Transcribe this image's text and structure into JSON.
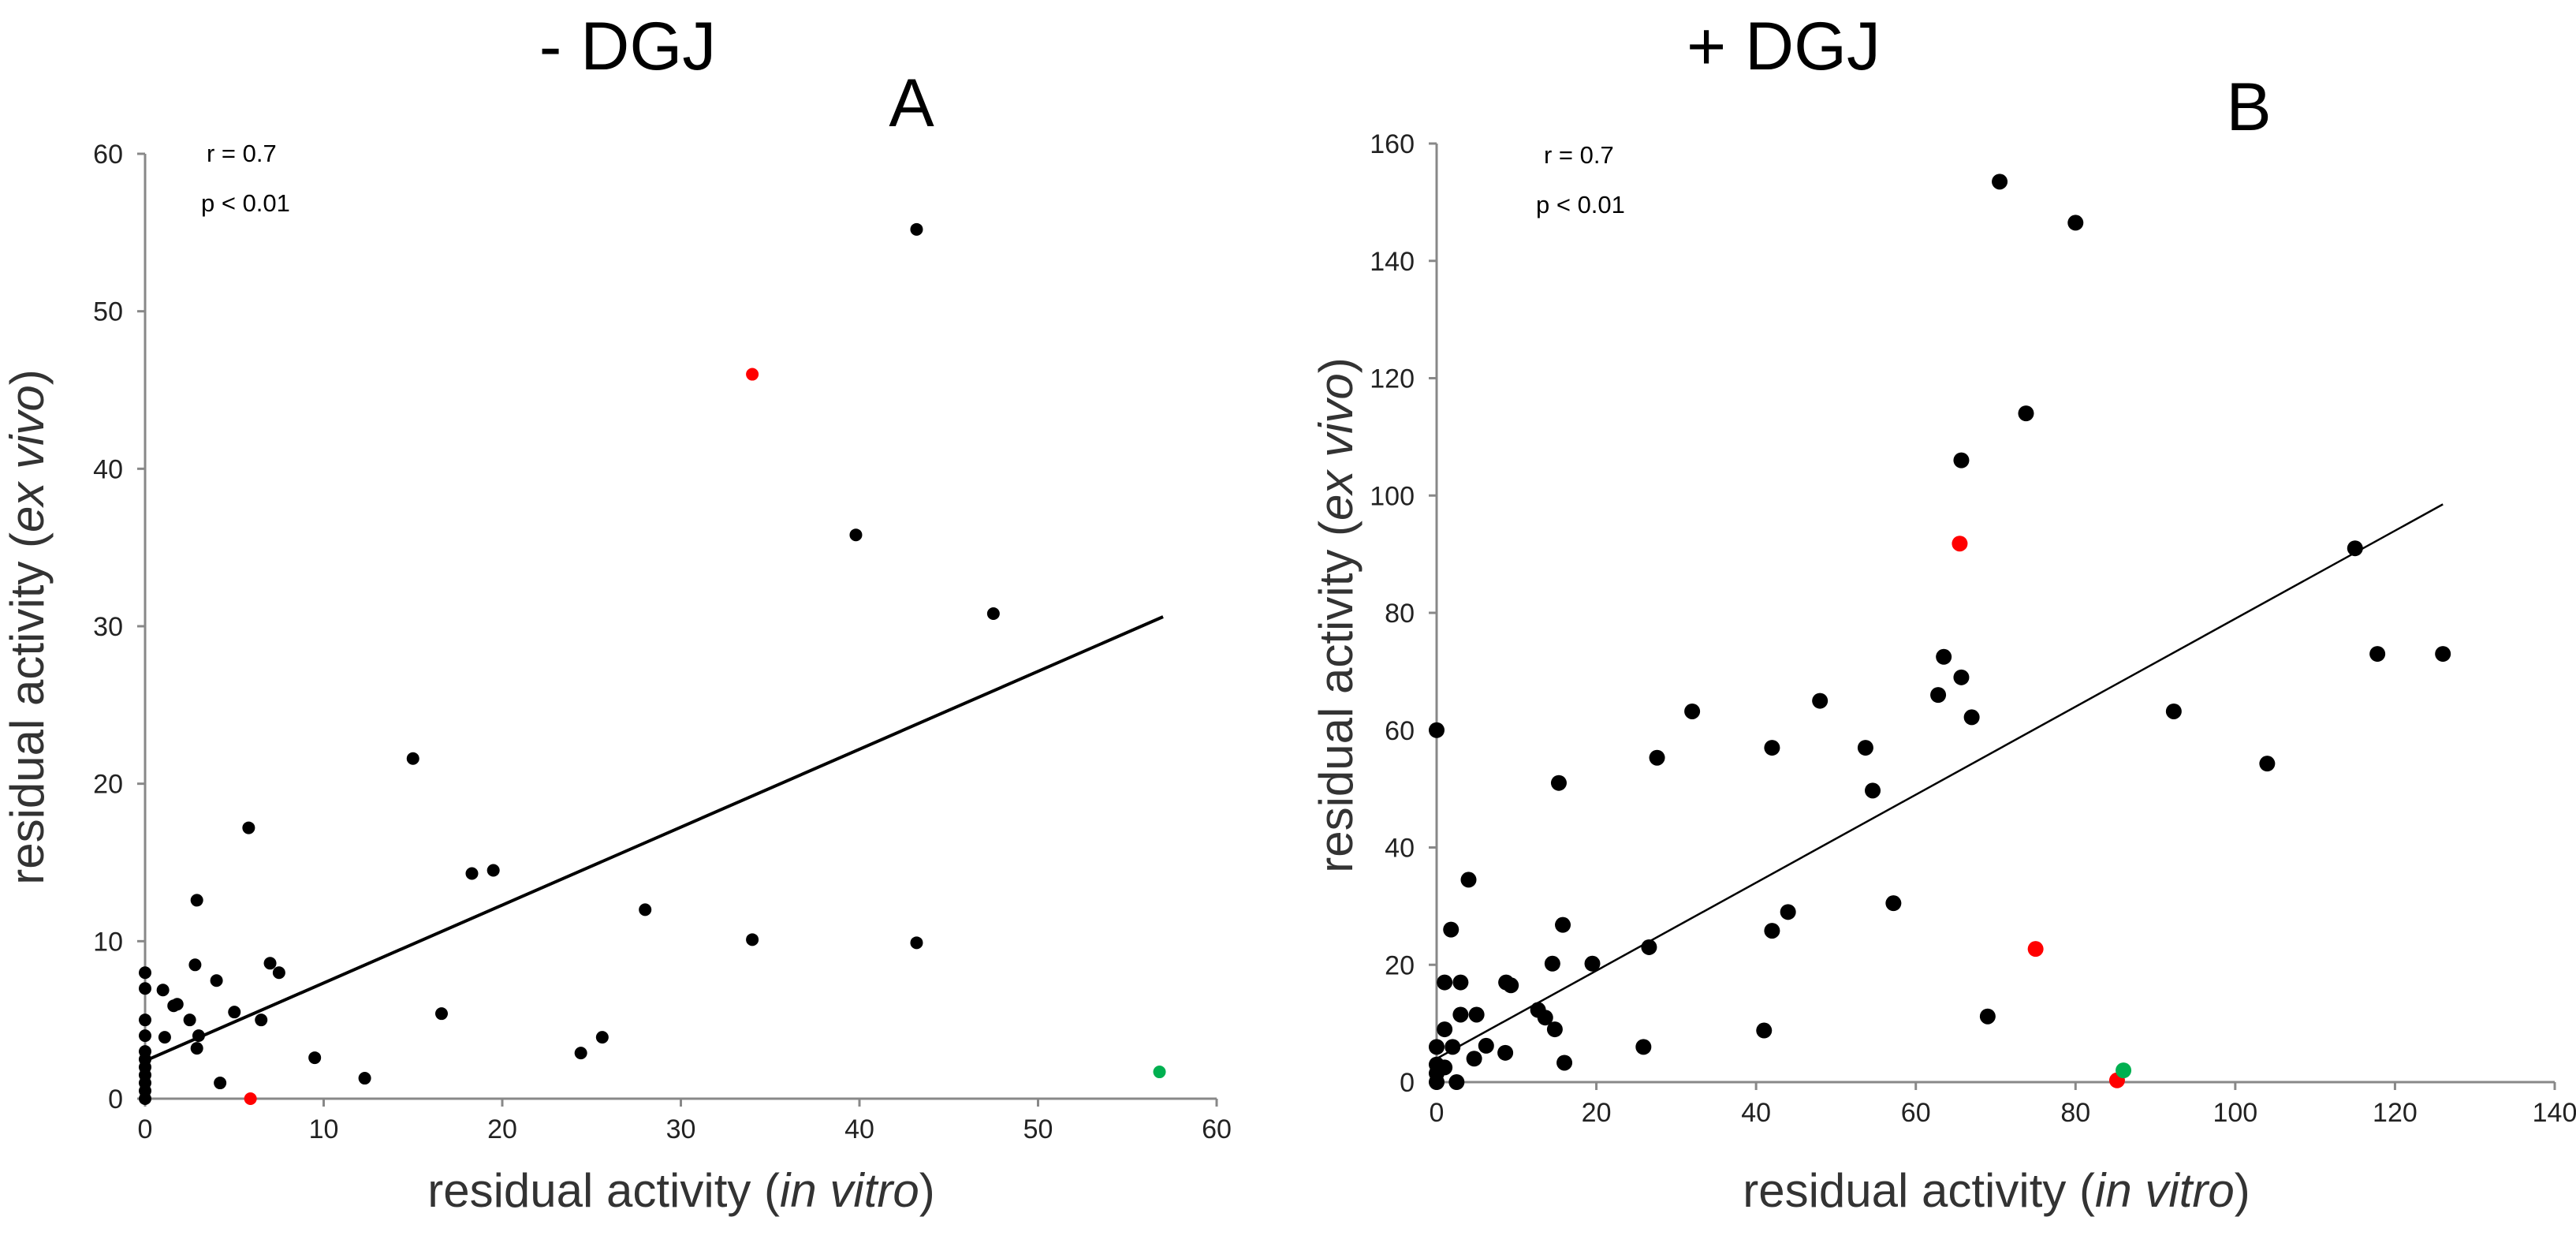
{
  "chart_data": [
    {
      "type": "scatter",
      "title": "- DGJ",
      "panel": "A",
      "xlabel": "residual activity (in vitro)",
      "xlabel_parts": [
        "residual activity (",
        "in vitro",
        ")"
      ],
      "ylabel": "residual activity (ex vivo)",
      "ylabel_parts": [
        "residual activity (",
        "ex vivo",
        ")"
      ],
      "xlim": [
        0,
        60
      ],
      "ylim": [
        0,
        60
      ],
      "xticks": [
        0,
        10,
        20,
        30,
        40,
        50,
        60
      ],
      "yticks": [
        0,
        10,
        20,
        30,
        40,
        50,
        60
      ],
      "annotations": {
        "r": "r = 0.7",
        "p": "p < 0.01"
      },
      "regression": {
        "x": [
          0,
          57
        ],
        "y": [
          2.4,
          30.6
        ]
      },
      "series": [
        {
          "name": "black",
          "color": "#000000",
          "points": [
            [
              43.2,
              55.2
            ],
            [
              39.8,
              35.8
            ],
            [
              47.5,
              30.8
            ],
            [
              15,
              21.6
            ],
            [
              5.8,
              17.2
            ],
            [
              18.3,
              14.3
            ],
            [
              19.5,
              14.5
            ],
            [
              28,
              12
            ],
            [
              34,
              10.1
            ],
            [
              43.2,
              9.9
            ],
            [
              2.9,
              12.6
            ],
            [
              2.8,
              8.5
            ],
            [
              0,
              8
            ],
            [
              0,
              7
            ],
            [
              1,
              6.9
            ],
            [
              1.8,
              6
            ],
            [
              1.6,
              5.9
            ],
            [
              0,
              5
            ],
            [
              2.5,
              5
            ],
            [
              4,
              7.5
            ],
            [
              3,
              4
            ],
            [
              2.9,
              3.2
            ],
            [
              1.1,
              3.9
            ],
            [
              5,
              5.5
            ],
            [
              6.5,
              5
            ],
            [
              7,
              8.6
            ],
            [
              7.5,
              8
            ],
            [
              0,
              4
            ],
            [
              0,
              3
            ],
            [
              0,
              2.5
            ],
            [
              0,
              2
            ],
            [
              0,
              1.5
            ],
            [
              0,
              1
            ],
            [
              0,
              0.5
            ],
            [
              0,
              0
            ],
            [
              4.2,
              1
            ],
            [
              9.5,
              2.6
            ],
            [
              12.3,
              1.3
            ],
            [
              16.6,
              5.4
            ],
            [
              24.4,
              2.9
            ],
            [
              25.6,
              3.9
            ]
          ]
        },
        {
          "name": "red",
          "color": "#ff0000",
          "points": [
            [
              34,
              46
            ],
            [
              5.9,
              0
            ]
          ]
        },
        {
          "name": "green",
          "color": "#00b050",
          "points": [
            [
              56.8,
              1.7
            ]
          ]
        }
      ]
    },
    {
      "type": "scatter",
      "title": "+ DGJ",
      "panel": "B",
      "xlabel": "residual activity (in vitro)",
      "xlabel_parts": [
        "residual activity (",
        "in vitro",
        ")"
      ],
      "ylabel": "residual activity (ex vivo)",
      "ylabel_parts": [
        "residual activity (",
        "ex vivo",
        ")"
      ],
      "xlim": [
        0,
        140
      ],
      "ylim": [
        0,
        160
      ],
      "xticks": [
        0,
        20,
        40,
        60,
        80,
        100,
        120,
        140
      ],
      "yticks": [
        0,
        20,
        40,
        60,
        80,
        100,
        120,
        140,
        160
      ],
      "annotations": {
        "r": "r = 0.7",
        "p": "p < 0.01"
      },
      "regression": {
        "x": [
          0,
          126
        ],
        "y": [
          4,
          98.5
        ]
      },
      "series": [
        {
          "name": "black",
          "color": "#000000",
          "points": [
            [
              70.5,
              153.5
            ],
            [
              80,
              146.5
            ],
            [
              73.8,
              114
            ],
            [
              65.7,
              106
            ],
            [
              115,
              91
            ],
            [
              117.8,
              73
            ],
            [
              126,
              73
            ],
            [
              63.5,
              72.5
            ],
            [
              65.7,
              69
            ],
            [
              62.8,
              66
            ],
            [
              67,
              62.2
            ],
            [
              92.3,
              63.2
            ],
            [
              104,
              54.3
            ],
            [
              48,
              65
            ],
            [
              32,
              63.2
            ],
            [
              27.6,
              55.3
            ],
            [
              42,
              57
            ],
            [
              53.7,
              57
            ],
            [
              54.6,
              49.7
            ],
            [
              15.3,
              51
            ],
            [
              0,
              60
            ],
            [
              57.2,
              30.5
            ],
            [
              4,
              34.5
            ],
            [
              15.8,
              26.8
            ],
            [
              1.8,
              26
            ],
            [
              42,
              25.8
            ],
            [
              44,
              29
            ],
            [
              26.6,
              23
            ],
            [
              14.5,
              20.2
            ],
            [
              19.5,
              20.2
            ],
            [
              8.7,
              17
            ],
            [
              9.3,
              16.5
            ],
            [
              1,
              17
            ],
            [
              3,
              17
            ],
            [
              3,
              11.5
            ],
            [
              5,
              11.5
            ],
            [
              12.7,
              12.3
            ],
            [
              13.6,
              11
            ],
            [
              14.8,
              9
            ],
            [
              1,
              9
            ],
            [
              2,
              6
            ],
            [
              0,
              6
            ],
            [
              6.2,
              6.2
            ],
            [
              8.6,
              5
            ],
            [
              4.7,
              4
            ],
            [
              16,
              3.3
            ],
            [
              25.9,
              6
            ],
            [
              41,
              8.8
            ],
            [
              69,
              11.2
            ],
            [
              0,
              3
            ],
            [
              0,
              1.5
            ],
            [
              0,
              0
            ],
            [
              2.5,
              0
            ],
            [
              1,
              2.5
            ]
          ]
        },
        {
          "name": "red",
          "color": "#ff0000",
          "points": [
            [
              65.5,
              91.8
            ],
            [
              75,
              22.7
            ],
            [
              85.2,
              0.3
            ]
          ]
        },
        {
          "name": "green",
          "color": "#00b050",
          "points": [
            [
              86,
              2
            ]
          ]
        }
      ]
    }
  ]
}
